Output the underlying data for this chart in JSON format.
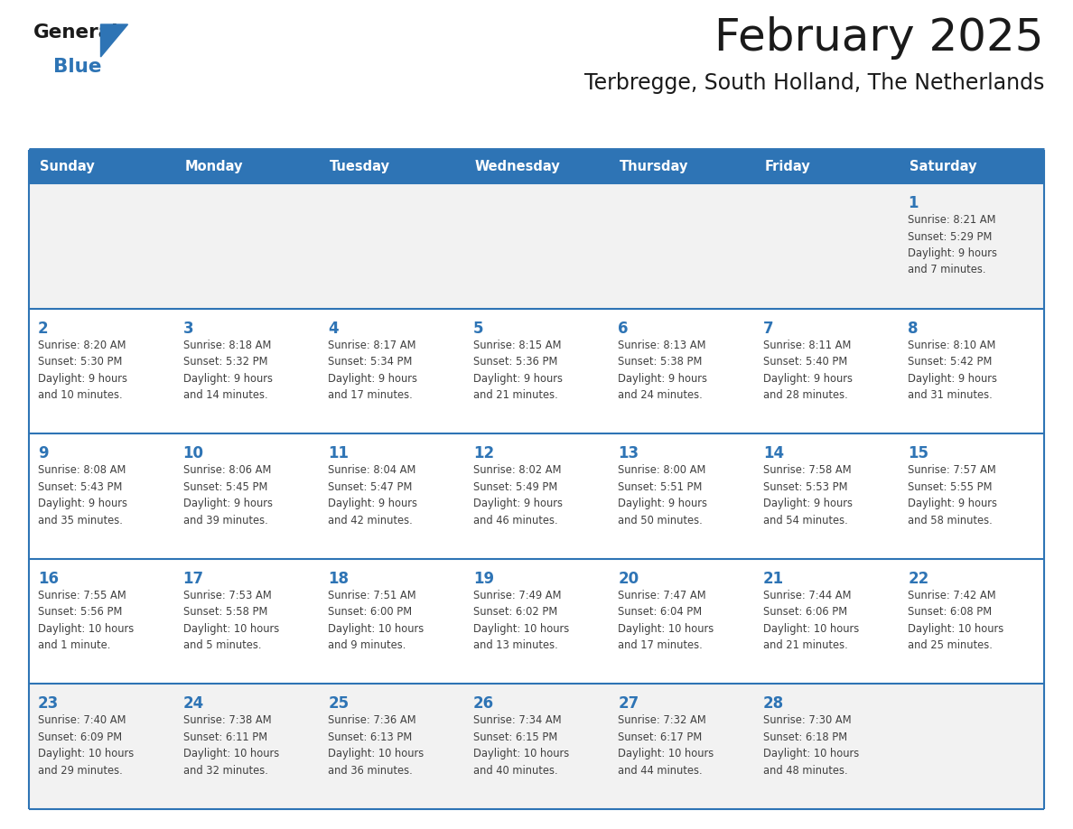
{
  "title": "February 2025",
  "subtitle": "Terbregge, South Holland, The Netherlands",
  "days_of_week": [
    "Sunday",
    "Monday",
    "Tuesday",
    "Wednesday",
    "Thursday",
    "Friday",
    "Saturday"
  ],
  "header_bg": "#2E74B5",
  "header_text": "#FFFFFF",
  "row_bg_white": "#FFFFFF",
  "row_bg_gray": "#F2F2F2",
  "cell_border": "#2E74B5",
  "title_color": "#1A1A1A",
  "subtitle_color": "#1A1A1A",
  "day_number_color": "#2E74B5",
  "cell_text_color": "#404040",
  "logo_general_color": "#1A1A1A",
  "logo_blue_color": "#2E74B5",
  "calendar_data": [
    [
      null,
      null,
      null,
      null,
      null,
      null,
      {
        "day": 1,
        "sunrise": "8:21 AM",
        "sunset": "5:29 PM",
        "daylight": "9 hours and 7 minutes."
      }
    ],
    [
      {
        "day": 2,
        "sunrise": "8:20 AM",
        "sunset": "5:30 PM",
        "daylight": "9 hours and 10 minutes."
      },
      {
        "day": 3,
        "sunrise": "8:18 AM",
        "sunset": "5:32 PM",
        "daylight": "9 hours and 14 minutes."
      },
      {
        "day": 4,
        "sunrise": "8:17 AM",
        "sunset": "5:34 PM",
        "daylight": "9 hours and 17 minutes."
      },
      {
        "day": 5,
        "sunrise": "8:15 AM",
        "sunset": "5:36 PM",
        "daylight": "9 hours and 21 minutes."
      },
      {
        "day": 6,
        "sunrise": "8:13 AM",
        "sunset": "5:38 PM",
        "daylight": "9 hours and 24 minutes."
      },
      {
        "day": 7,
        "sunrise": "8:11 AM",
        "sunset": "5:40 PM",
        "daylight": "9 hours and 28 minutes."
      },
      {
        "day": 8,
        "sunrise": "8:10 AM",
        "sunset": "5:42 PM",
        "daylight": "9 hours and 31 minutes."
      }
    ],
    [
      {
        "day": 9,
        "sunrise": "8:08 AM",
        "sunset": "5:43 PM",
        "daylight": "9 hours and 35 minutes."
      },
      {
        "day": 10,
        "sunrise": "8:06 AM",
        "sunset": "5:45 PM",
        "daylight": "9 hours and 39 minutes."
      },
      {
        "day": 11,
        "sunrise": "8:04 AM",
        "sunset": "5:47 PM",
        "daylight": "9 hours and 42 minutes."
      },
      {
        "day": 12,
        "sunrise": "8:02 AM",
        "sunset": "5:49 PM",
        "daylight": "9 hours and 46 minutes."
      },
      {
        "day": 13,
        "sunrise": "8:00 AM",
        "sunset": "5:51 PM",
        "daylight": "9 hours and 50 minutes."
      },
      {
        "day": 14,
        "sunrise": "7:58 AM",
        "sunset": "5:53 PM",
        "daylight": "9 hours and 54 minutes."
      },
      {
        "day": 15,
        "sunrise": "7:57 AM",
        "sunset": "5:55 PM",
        "daylight": "9 hours and 58 minutes."
      }
    ],
    [
      {
        "day": 16,
        "sunrise": "7:55 AM",
        "sunset": "5:56 PM",
        "daylight": "10 hours and 1 minute."
      },
      {
        "day": 17,
        "sunrise": "7:53 AM",
        "sunset": "5:58 PM",
        "daylight": "10 hours and 5 minutes."
      },
      {
        "day": 18,
        "sunrise": "7:51 AM",
        "sunset": "6:00 PM",
        "daylight": "10 hours and 9 minutes."
      },
      {
        "day": 19,
        "sunrise": "7:49 AM",
        "sunset": "6:02 PM",
        "daylight": "10 hours and 13 minutes."
      },
      {
        "day": 20,
        "sunrise": "7:47 AM",
        "sunset": "6:04 PM",
        "daylight": "10 hours and 17 minutes."
      },
      {
        "day": 21,
        "sunrise": "7:44 AM",
        "sunset": "6:06 PM",
        "daylight": "10 hours and 21 minutes."
      },
      {
        "day": 22,
        "sunrise": "7:42 AM",
        "sunset": "6:08 PM",
        "daylight": "10 hours and 25 minutes."
      }
    ],
    [
      {
        "day": 23,
        "sunrise": "7:40 AM",
        "sunset": "6:09 PM",
        "daylight": "10 hours and 29 minutes."
      },
      {
        "day": 24,
        "sunrise": "7:38 AM",
        "sunset": "6:11 PM",
        "daylight": "10 hours and 32 minutes."
      },
      {
        "day": 25,
        "sunrise": "7:36 AM",
        "sunset": "6:13 PM",
        "daylight": "10 hours and 36 minutes."
      },
      {
        "day": 26,
        "sunrise": "7:34 AM",
        "sunset": "6:15 PM",
        "daylight": "10 hours and 40 minutes."
      },
      {
        "day": 27,
        "sunrise": "7:32 AM",
        "sunset": "6:17 PM",
        "daylight": "10 hours and 44 minutes."
      },
      {
        "day": 28,
        "sunrise": "7:30 AM",
        "sunset": "6:18 PM",
        "daylight": "10 hours and 48 minutes."
      },
      null
    ]
  ],
  "row_backgrounds": [
    "gray",
    "white",
    "white",
    "white",
    "gray"
  ]
}
